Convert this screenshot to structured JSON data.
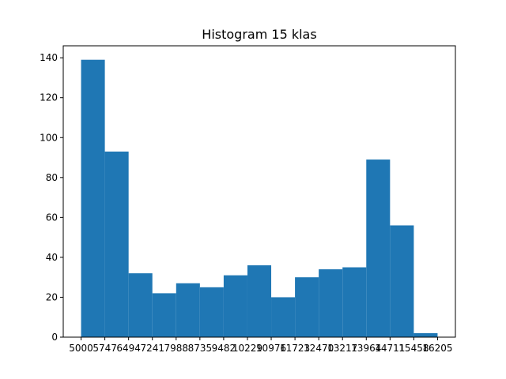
{
  "chart_data": {
    "type": "bar",
    "title": "Histogram 15 klas",
    "xlabel": "",
    "ylabel": "",
    "bin_edges": [
      5000,
      5747,
      6494,
      7241,
      7988,
      8735,
      9482,
      10229,
      10976,
      11723,
      12470,
      13217,
      13964,
      14711,
      15458,
      16205
    ],
    "x_tick_labels": [
      "5000",
      "5747",
      "6494",
      "7241",
      "7988",
      "8735",
      "9482",
      "10229",
      "10976",
      "11723",
      "12470",
      "13217",
      "13964",
      "14711",
      "15458",
      "16205"
    ],
    "values": [
      139,
      93,
      32,
      22,
      27,
      25,
      31,
      36,
      20,
      30,
      34,
      35,
      89,
      56,
      2
    ],
    "y_ticks": [
      0,
      20,
      40,
      60,
      80,
      100,
      120,
      140
    ],
    "ylim": [
      0,
      146
    ],
    "bar_color": "#1f77b4",
    "grid": false
  }
}
